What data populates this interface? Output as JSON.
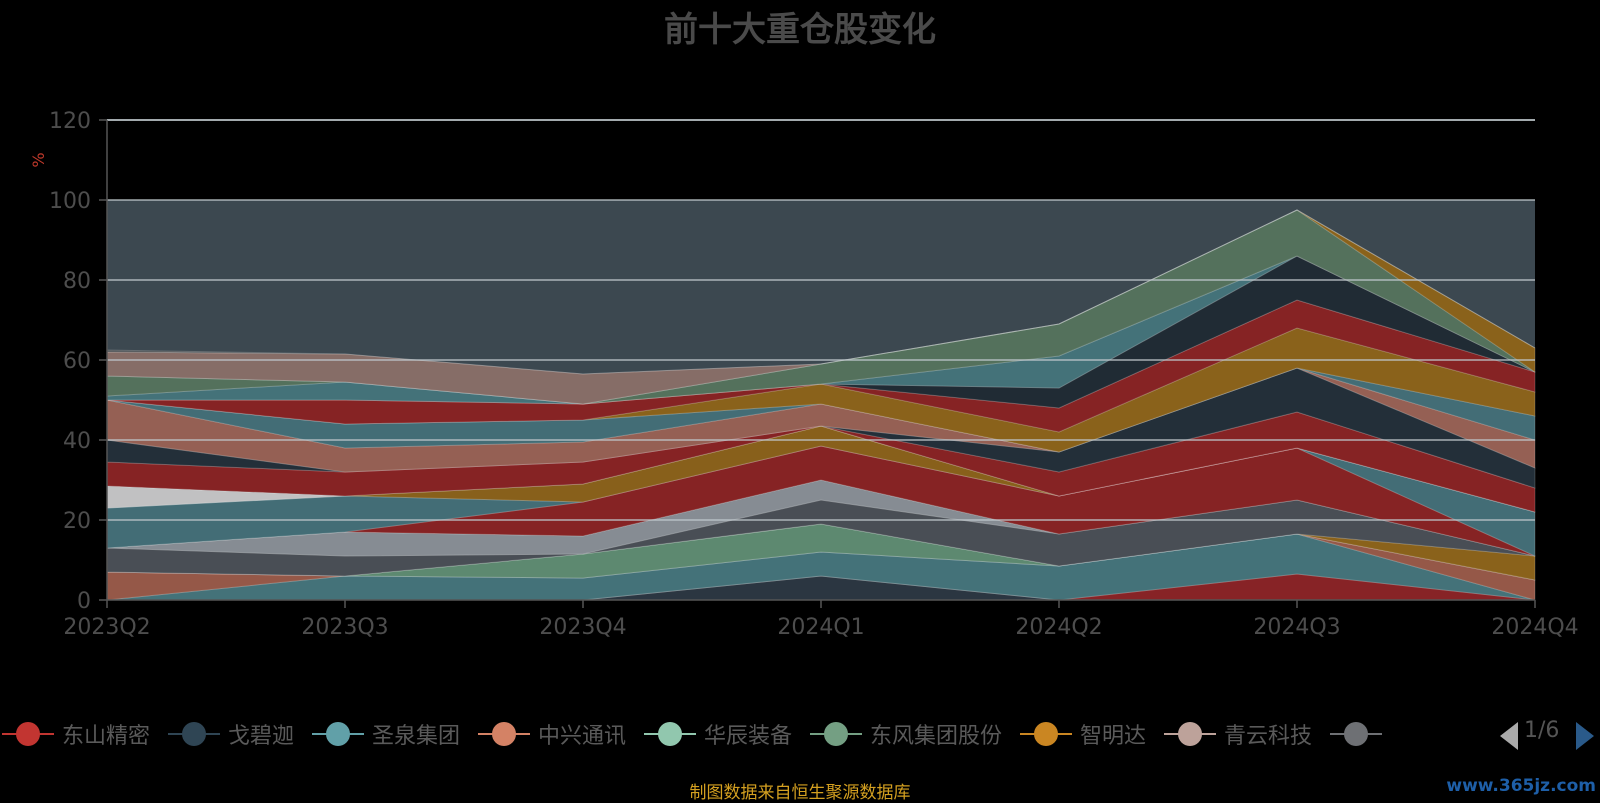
{
  "colors": {
    "background": "#000000",
    "title": "#4a4a4a",
    "axis_text": "#4d4d4d",
    "unit_text": "#c0392b",
    "source_note": "#d4a020",
    "watermark": "#1e5fa8",
    "band_fill": "#3c4850",
    "gridline": "#bfc8cc"
  },
  "legend_pager": {
    "page": "1/6"
  },
  "source_note": "制图数据来自恒生聚源数据库",
  "watermark": "www.365jz.com",
  "chart_data": {
    "type": "area",
    "title": "前十大重仓股变化",
    "xlabel": "",
    "ylabel": "%",
    "categories": [
      "2023Q2",
      "2023Q3",
      "2023Q4",
      "2024Q1",
      "2024Q2",
      "2024Q3",
      "2024Q4"
    ],
    "ylim": [
      0,
      120
    ],
    "yticks": [
      0,
      20,
      40,
      60,
      80,
      100,
      120
    ],
    "highlight_band": [
      0,
      100
    ],
    "grid": true,
    "legend_position": "bottom",
    "legend": [
      {
        "name": "东山精密",
        "color": "#c23531"
      },
      {
        "name": "戈碧迦",
        "color": "#2f4554"
      },
      {
        "name": "圣泉集团",
        "color": "#61a0a8"
      },
      {
        "name": "中兴通讯",
        "color": "#d48265"
      },
      {
        "name": "华辰装备",
        "color": "#91c7ae"
      },
      {
        "name": "东风集团股份",
        "color": "#749f83"
      },
      {
        "name": "智明达",
        "color": "#ca8622"
      },
      {
        "name": "青云科技",
        "color": "#bda29a"
      },
      {
        "name": "",
        "color": "#6e7074"
      }
    ],
    "bands": [
      {
        "color": "#2a3640",
        "values": [
          [
            0,
            0
          ],
          [
            0,
            0
          ],
          [
            0,
            0
          ],
          [
            0,
            6
          ],
          [
            0,
            0
          ],
          [
            0,
            0
          ],
          [
            0,
            0
          ]
        ]
      },
      {
        "color": "#8b2224",
        "values": [
          [
            0,
            0
          ],
          [
            0,
            0
          ],
          [
            0,
            0
          ],
          [
            6,
            6
          ],
          [
            0,
            0
          ],
          [
            0,
            6.5
          ],
          [
            0,
            0
          ]
        ]
      },
      {
        "color": "#45757b",
        "values": [
          [
            0,
            0
          ],
          [
            0,
            6
          ],
          [
            0,
            5.5
          ],
          [
            6,
            12
          ],
          [
            0,
            8.5
          ],
          [
            6.5,
            16.5
          ],
          [
            0,
            0
          ]
        ]
      },
      {
        "color": "#9a5a48",
        "values": [
          [
            0,
            7
          ],
          [
            6,
            6
          ],
          [
            5.5,
            5.5
          ],
          [
            12,
            12
          ],
          [
            8.5,
            8.5
          ],
          [
            16.5,
            16.5
          ],
          [
            0,
            5
          ]
        ]
      },
      {
        "color": "#5f8d72",
        "values": [
          [
            7,
            7
          ],
          [
            6,
            6
          ],
          [
            5.5,
            11.5
          ],
          [
            12,
            19
          ],
          [
            8.5,
            8.5
          ],
          [
            16.5,
            16.5
          ],
          [
            5,
            5
          ]
        ]
      },
      {
        "color": "#8e6418",
        "values": [
          [
            7,
            7
          ],
          [
            6,
            6
          ],
          [
            11.5,
            11.5
          ],
          [
            19,
            19
          ],
          [
            8.5,
            8.5
          ],
          [
            16.5,
            16.5
          ],
          [
            5,
            11
          ]
        ]
      },
      {
        "color": "#4a4f55",
        "values": [
          [
            7,
            13
          ],
          [
            6,
            11
          ],
          [
            11.5,
            11.5
          ],
          [
            19,
            25
          ],
          [
            8.5,
            16.5
          ],
          [
            16.5,
            25
          ],
          [
            11,
            11
          ]
        ]
      },
      {
        "color": "#8a9097",
        "values": [
          [
            13,
            13
          ],
          [
            11,
            17
          ],
          [
            11.5,
            16
          ],
          [
            25,
            30
          ],
          [
            16.5,
            16.5
          ],
          [
            25,
            25
          ],
          [
            11,
            11
          ]
        ]
      },
      {
        "color": "#8a2222",
        "values": [
          [
            13,
            13
          ],
          [
            17,
            17
          ],
          [
            16,
            24.5
          ],
          [
            30,
            38.5
          ],
          [
            16.5,
            26
          ],
          [
            25,
            38
          ],
          [
            11,
            11
          ]
        ]
      },
      {
        "color": "#437078",
        "values": [
          [
            13,
            23
          ],
          [
            17,
            26
          ],
          [
            24.5,
            24.5
          ],
          [
            38.5,
            38.5
          ],
          [
            26,
            26
          ],
          [
            38,
            38
          ],
          [
            11,
            22
          ]
        ]
      },
      {
        "color": "#8c6218",
        "values": [
          [
            23,
            23
          ],
          [
            26,
            26
          ],
          [
            24.5,
            29
          ],
          [
            38.5,
            43.5
          ],
          [
            26,
            26
          ],
          [
            38,
            38
          ],
          [
            22,
            22
          ]
        ]
      },
      {
        "color": "#c8c8c8",
        "values": [
          [
            23,
            28.5
          ],
          [
            26,
            26
          ],
          [
            29,
            29
          ],
          [
            43.5,
            43.5
          ],
          [
            26,
            26
          ],
          [
            38,
            38
          ],
          [
            22,
            22
          ]
        ]
      },
      {
        "color": "#8a2222",
        "values": [
          [
            28.5,
            34.5
          ],
          [
            26,
            32
          ],
          [
            29,
            34.5
          ],
          [
            43.5,
            43.5
          ],
          [
            26,
            32
          ],
          [
            38,
            47
          ],
          [
            22,
            28
          ]
        ]
      },
      {
        "color": "#222e38",
        "values": [
          [
            34.5,
            40
          ],
          [
            32,
            32
          ],
          [
            34.5,
            34.5
          ],
          [
            43.5,
            43.5
          ],
          [
            32,
            37
          ],
          [
            47,
            58
          ],
          [
            28,
            33
          ]
        ]
      },
      {
        "color": "#9a6254",
        "values": [
          [
            40,
            50
          ],
          [
            32,
            38
          ],
          [
            34.5,
            39.5
          ],
          [
            43.5,
            49
          ],
          [
            37,
            37
          ],
          [
            58,
            58
          ],
          [
            33,
            40
          ]
        ]
      },
      {
        "color": "#437078",
        "values": [
          [
            50,
            50
          ],
          [
            38,
            44
          ],
          [
            39.5,
            45
          ],
          [
            49,
            49
          ],
          [
            37,
            37
          ],
          [
            58,
            58
          ],
          [
            40,
            46
          ]
        ]
      },
      {
        "color": "#8e6418",
        "values": [
          [
            50,
            50
          ],
          [
            44,
            44
          ],
          [
            45,
            45
          ],
          [
            49,
            54
          ],
          [
            37,
            42
          ],
          [
            58,
            68
          ],
          [
            46,
            52
          ]
        ]
      },
      {
        "color": "#8a2222",
        "values": [
          [
            50,
            50
          ],
          [
            44,
            50
          ],
          [
            45,
            49
          ],
          [
            54,
            54
          ],
          [
            42,
            48
          ],
          [
            68,
            75
          ],
          [
            52,
            57
          ]
        ]
      },
      {
        "color": "#1f2a33",
        "values": [
          [
            50,
            50
          ],
          [
            50,
            50
          ],
          [
            49,
            49
          ],
          [
            54,
            54
          ],
          [
            48,
            53
          ],
          [
            75,
            86
          ],
          [
            57,
            57
          ]
        ]
      },
      {
        "color": "#45757b",
        "values": [
          [
            50,
            51
          ],
          [
            50,
            54.5
          ],
          [
            49,
            49
          ],
          [
            54,
            54
          ],
          [
            53,
            61
          ],
          [
            86,
            86
          ],
          [
            57,
            57
          ]
        ]
      },
      {
        "color": "#55745d",
        "values": [
          [
            51,
            56
          ],
          [
            54.5,
            54.5
          ],
          [
            49,
            49
          ],
          [
            54,
            59
          ],
          [
            61,
            69
          ],
          [
            86,
            97.5
          ],
          [
            57,
            57
          ]
        ]
      },
      {
        "color": "#8e6418",
        "values": [
          [
            56,
            56
          ],
          [
            54.5,
            54.5
          ],
          [
            49,
            49
          ],
          [
            59,
            59
          ],
          [
            69,
            69
          ],
          [
            97.5,
            97.5
          ],
          [
            57,
            63
          ]
        ]
      },
      {
        "color": "#8a7068",
        "values": [
          [
            56,
            62
          ],
          [
            54.5,
            61.5
          ],
          [
            49,
            56.5
          ],
          [
            59,
            59
          ],
          [
            69,
            69
          ],
          [
            97.5,
            97.5
          ],
          [
            63,
            63
          ]
        ]
      },
      {
        "color": "#505456",
        "values": [
          [
            62,
            62.5
          ],
          [
            61.5,
            61.5
          ],
          [
            56.5,
            56.5
          ],
          [
            59,
            59
          ],
          [
            69,
            69
          ],
          [
            97.5,
            97.5
          ],
          [
            63,
            63
          ]
        ]
      }
    ]
  }
}
